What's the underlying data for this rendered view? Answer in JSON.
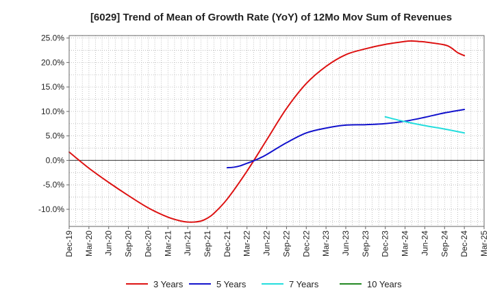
{
  "chart_data": {
    "type": "line",
    "title": "[6029]  Trend of Mean of Growth Rate (YoY) of 12Mo Mov Sum of Revenues",
    "xlabel": "",
    "ylabel": "",
    "ylim": [
      -13.5,
      25.5
    ],
    "y_ticks": [
      25,
      20,
      15,
      10,
      5,
      0,
      -5,
      -10
    ],
    "y_tick_labels": [
      "25.0%",
      "20.0%",
      "15.0%",
      "10.0%",
      "5.0%",
      "0.0%",
      "-5.0%",
      "-10.0%"
    ],
    "x_start": "2019-12",
    "x_months_total": 63,
    "x_tick_labels": [
      "Dec-19",
      "Mar-20",
      "Jun-20",
      "Sep-20",
      "Dec-20",
      "Mar-21",
      "Jun-21",
      "Sep-21",
      "Dec-21",
      "Mar-22",
      "Jun-22",
      "Sep-22",
      "Dec-22",
      "Mar-23",
      "Jun-23",
      "Sep-23",
      "Dec-23",
      "Mar-24",
      "Jun-24",
      "Sep-24",
      "Dec-24",
      "Mar-25"
    ],
    "grid": true,
    "legend_position": "bottom",
    "series": [
      {
        "name": "3 Years",
        "color": "#dd1111",
        "points": [
          [
            0,
            1.7
          ],
          [
            3,
            -1.6
          ],
          [
            6,
            -4.5
          ],
          [
            9,
            -7.2
          ],
          [
            12,
            -9.7
          ],
          [
            15,
            -11.6
          ],
          [
            17,
            -12.4
          ],
          [
            18,
            -12.6
          ],
          [
            19,
            -12.6
          ],
          [
            20,
            -12.4
          ],
          [
            21,
            -11.8
          ],
          [
            22,
            -10.8
          ],
          [
            24,
            -7.9
          ],
          [
            27,
            -2.2
          ],
          [
            30,
            4.2
          ],
          [
            33,
            10.6
          ],
          [
            36,
            15.7
          ],
          [
            39,
            19.2
          ],
          [
            42,
            21.6
          ],
          [
            45,
            22.8
          ],
          [
            48,
            23.7
          ],
          [
            51,
            24.3
          ],
          [
            52,
            24.4
          ],
          [
            53,
            24.3
          ],
          [
            54,
            24.2
          ],
          [
            57,
            23.6
          ],
          [
            58,
            23.0
          ],
          [
            59,
            22.0
          ],
          [
            60,
            21.4
          ]
        ]
      },
      {
        "name": "5 Years",
        "color": "#1111cc",
        "points": [
          [
            24,
            -1.5
          ],
          [
            25,
            -1.4
          ],
          [
            26,
            -1.1
          ],
          [
            27,
            -0.6
          ],
          [
            28,
            -0.1
          ],
          [
            29,
            0.5
          ],
          [
            30,
            1.2
          ],
          [
            33,
            3.6
          ],
          [
            36,
            5.6
          ],
          [
            39,
            6.6
          ],
          [
            42,
            7.2
          ],
          [
            45,
            7.3
          ],
          [
            48,
            7.5
          ],
          [
            51,
            8.0
          ],
          [
            54,
            8.8
          ],
          [
            57,
            9.7
          ],
          [
            60,
            10.4
          ]
        ]
      },
      {
        "name": "7 Years",
        "color": "#22dddd",
        "points": [
          [
            48,
            8.9
          ],
          [
            51,
            7.9
          ],
          [
            54,
            7.1
          ],
          [
            57,
            6.4
          ],
          [
            60,
            5.6
          ]
        ]
      },
      {
        "name": "10 Years",
        "color": "#228822",
        "points": []
      }
    ]
  }
}
